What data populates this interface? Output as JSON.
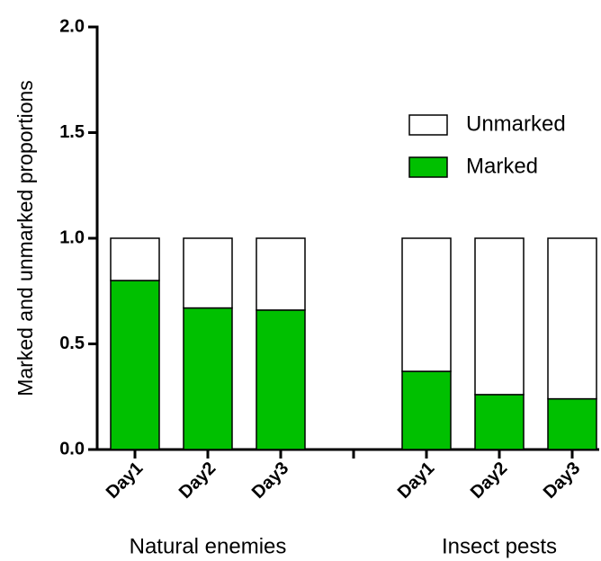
{
  "chart_data": {
    "type": "stacked-bar",
    "y_label": "Marked and unmarked proportions",
    "categories": [
      "Day1",
      "Day2",
      "Day3",
      null,
      "Day1",
      "Day2",
      "Day3"
    ],
    "groups": [
      "Natural enemies",
      "Insect pests"
    ],
    "series": [
      {
        "name": "Marked",
        "color": "#00c000",
        "values": [
          0.8,
          0.67,
          0.66,
          null,
          0.37,
          0.26,
          0.24
        ]
      },
      {
        "name": "Unmarked",
        "color": "#ffffff",
        "values": [
          0.2,
          0.33,
          0.34,
          null,
          0.63,
          0.74,
          0.76
        ]
      }
    ],
    "ylim": [
      0,
      2
    ],
    "yticks": [
      {
        "value": 0,
        "label": "0.0"
      },
      {
        "value": 0.5,
        "label": "0.5"
      },
      {
        "value": 1,
        "label": "1.0"
      },
      {
        "value": 1.5,
        "label": "1.5"
      },
      {
        "value": 2,
        "label": "2.0"
      }
    ],
    "legend": "upper-right"
  }
}
